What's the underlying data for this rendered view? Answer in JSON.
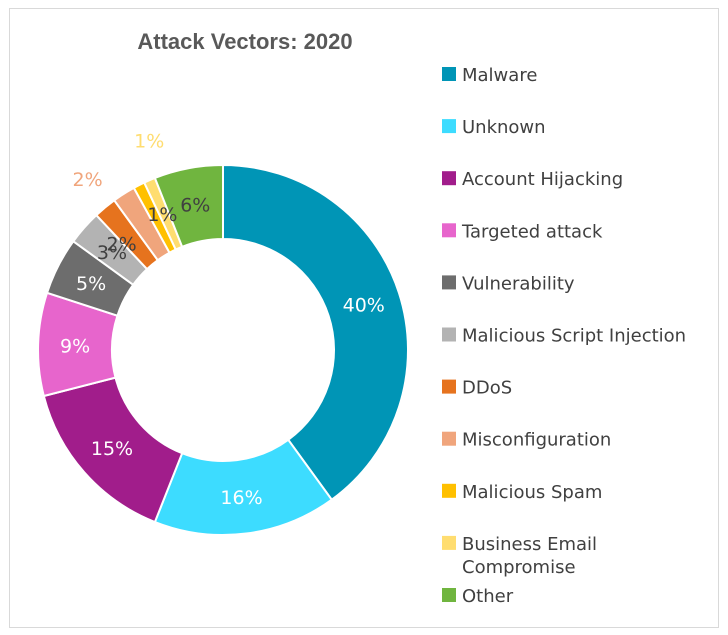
{
  "chart_data": {
    "type": "pie",
    "variant": "donut",
    "title": "Attack Vectors: 2020",
    "legend_position": "right",
    "series": [
      {
        "name": "Malware",
        "value": 40,
        "label": "40%",
        "color": "#0095b6",
        "label_color": "#ffffff"
      },
      {
        "name": "Unknown",
        "value": 16,
        "label": "16%",
        "color": "#3ddcff",
        "label_color": "#ffffff"
      },
      {
        "name": "Account Hijacking",
        "value": 15,
        "label": "15%",
        "color": "#a11d8b",
        "label_color": "#ffffff"
      },
      {
        "name": "Targeted attack",
        "value": 9,
        "label": "9%",
        "color": "#e765cc",
        "label_color": "#ffffff"
      },
      {
        "name": "Vulnerability",
        "value": 5,
        "label": "5%",
        "color": "#6d6d6d",
        "label_color": "#ffffff"
      },
      {
        "name": "Malicious Script Injection",
        "value": 3,
        "label": "3%",
        "color": "#b3b3b3",
        "label_color": "#404040"
      },
      {
        "name": "DDoS",
        "value": 2,
        "label": "2%",
        "color": "#e6731e",
        "label_color": "#404040"
      },
      {
        "name": "Misconfiguration",
        "value": 2,
        "label": "2%",
        "color": "#f0a57c",
        "label_color": "#f0a57c"
      },
      {
        "name": "Malicious Spam",
        "value": 1,
        "label": "1%",
        "color": "#ffc000",
        "label_color": "#404040"
      },
      {
        "name": "Business Email Compromise",
        "value": 1,
        "label": "1%",
        "color": "#ffdd70",
        "label_color": "#ffdd70"
      },
      {
        "name": "Other",
        "value": 6,
        "label": "6%",
        "color": "#70b53f",
        "label_color": "#404040"
      }
    ]
  }
}
